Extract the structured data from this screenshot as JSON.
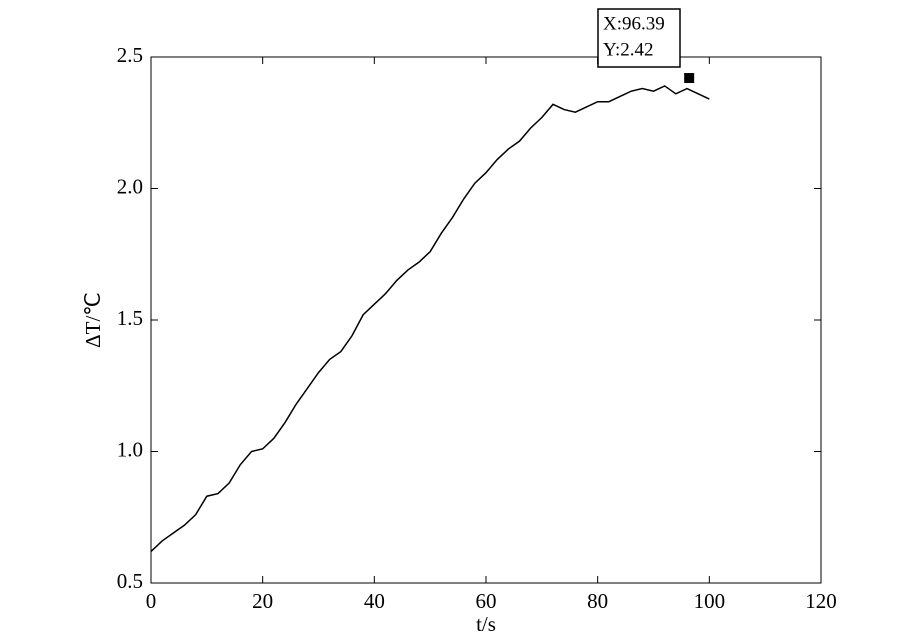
{
  "chart_data": {
    "type": "line",
    "x_label": "t/s",
    "y_label": "ΔT/℃",
    "x": [
      0,
      2,
      4,
      6,
      8,
      10,
      12,
      14,
      16,
      18,
      20,
      22,
      24,
      26,
      28,
      30,
      32,
      34,
      36,
      38,
      40,
      42,
      44,
      46,
      48,
      50,
      52,
      54,
      56,
      58,
      60,
      62,
      64,
      66,
      68,
      70,
      72,
      74,
      76,
      78,
      80,
      82,
      84,
      86,
      88,
      90,
      92,
      94,
      96,
      98,
      100
    ],
    "values": [
      0.62,
      0.66,
      0.69,
      0.72,
      0.76,
      0.83,
      0.84,
      0.88,
      0.95,
      1.0,
      1.01,
      1.05,
      1.11,
      1.18,
      1.24,
      1.3,
      1.35,
      1.38,
      1.44,
      1.52,
      1.56,
      1.6,
      1.65,
      1.69,
      1.72,
      1.76,
      1.83,
      1.89,
      1.96,
      2.02,
      2.06,
      2.11,
      2.15,
      2.18,
      2.23,
      2.27,
      2.32,
      2.3,
      2.29,
      2.31,
      2.33,
      2.33,
      2.35,
      2.37,
      2.38,
      2.37,
      2.39,
      2.36,
      2.38,
      2.36,
      2.34
    ],
    "color": "#000000",
    "xlim": [
      0,
      120
    ],
    "xticks": [
      0,
      20,
      40,
      60,
      80,
      100,
      120
    ],
    "ylim": [
      0.5,
      2.5
    ],
    "yticks": [
      0.5,
      {
        "value": 1,
        "label": "1.0"
      },
      1.5,
      {
        "value": 2,
        "label": "2.0"
      },
      2.5
    ],
    "grid": false,
    "datatip": {
      "x": 96.39,
      "y": 2.42,
      "labels": [
        "X:96.39",
        "Y:2.42"
      ]
    }
  }
}
